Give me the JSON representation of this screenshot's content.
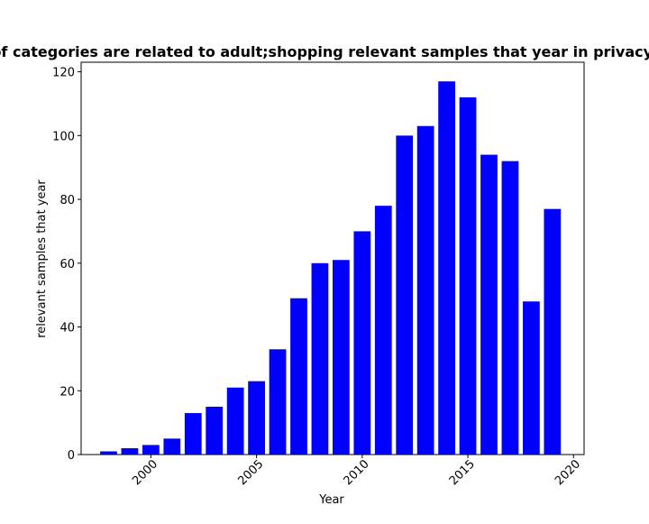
{
  "chart_data": {
    "type": "bar",
    "title": "Ratio of categories are related to adult;shopping relevant samples that year in privacy policies",
    "xlabel": "Year",
    "ylabel": "relevant samples that year",
    "x": [
      1998,
      1999,
      2000,
      2001,
      2002,
      2003,
      2004,
      2005,
      2006,
      2007,
      2008,
      2009,
      2010,
      2011,
      2012,
      2013,
      2014,
      2015,
      2016,
      2017,
      2018,
      2019
    ],
    "values": [
      1,
      2,
      3,
      5,
      13,
      15,
      21,
      23,
      33,
      49,
      60,
      61,
      70,
      78,
      100,
      103,
      117,
      112,
      94,
      92,
      48,
      77
    ],
    "xlim": [
      1996.7,
      2020.5
    ],
    "ylim": [
      0,
      123
    ],
    "xticks": [
      2000,
      2005,
      2010,
      2015,
      2020
    ],
    "xtick_labels": [
      "2000",
      "2005",
      "2010",
      "2015",
      "2020"
    ],
    "yticks": [
      0,
      20,
      40,
      60,
      80,
      100,
      120
    ],
    "ytick_labels": [
      "0",
      "20",
      "40",
      "60",
      "80",
      "100",
      "120"
    ],
    "bar_color": "#0000ff",
    "grid": false,
    "legend": "none"
  }
}
